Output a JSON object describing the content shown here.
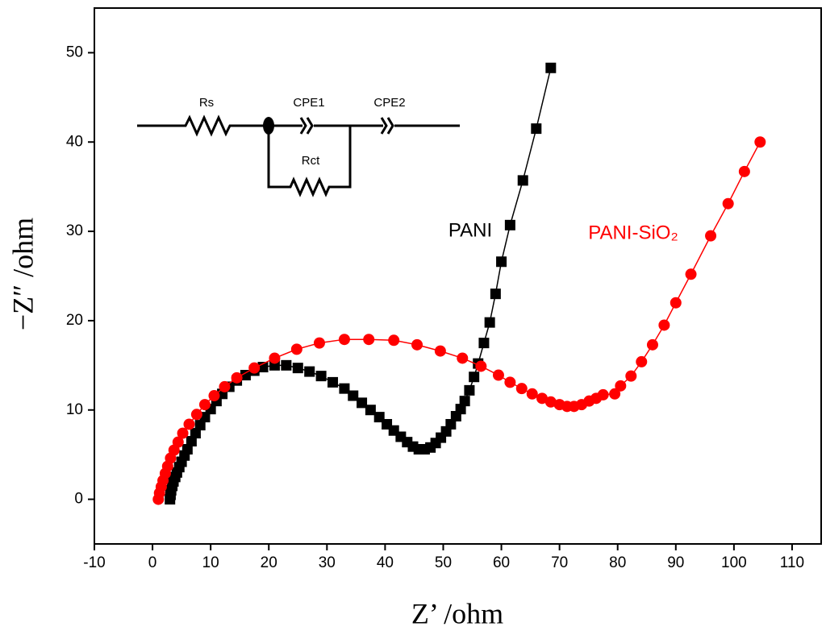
{
  "chart_data": {
    "type": "scatter",
    "xlabel": "Z’ /ohm",
    "ylabel": "−Z″ /ohm",
    "xlim": [
      -10,
      115
    ],
    "ylim": [
      -5,
      55
    ],
    "xticks": [
      -10,
      0,
      10,
      20,
      30,
      40,
      50,
      60,
      70,
      80,
      90,
      100,
      110
    ],
    "yticks": [
      0,
      10,
      20,
      30,
      40,
      50
    ],
    "circuit_labels": [
      "Rs",
      "CPE1",
      "CPE2",
      "Rct"
    ],
    "series": [
      {
        "name": "PANI",
        "color": "#000000",
        "marker": "square",
        "x": [
          3,
          3.1,
          3.2,
          3.4,
          3.6,
          3.9,
          4.2,
          4.6,
          5,
          5.5,
          6,
          6.7,
          7.4,
          8.2,
          9,
          10,
          11,
          12,
          13.2,
          14.5,
          16,
          17.5,
          19,
          21,
          23,
          25,
          27,
          29,
          31,
          33,
          34.5,
          36,
          37.5,
          39,
          40.3,
          41.5,
          42.7,
          43.8,
          44.8,
          45.8,
          46.8,
          47.8,
          48.7,
          49.6,
          50.5,
          51.3,
          52.2,
          53,
          53.7,
          54.5,
          55.3,
          56,
          57,
          58,
          59,
          60,
          61.5,
          63.7,
          66,
          68.5
        ],
        "values": [
          0,
          0.5,
          1,
          1.5,
          2,
          2.5,
          3,
          3.6,
          4.2,
          4.9,
          5.6,
          6.5,
          7.4,
          8.3,
          9.2,
          10.1,
          11,
          11.8,
          12.6,
          13.3,
          13.9,
          14.4,
          14.8,
          15,
          15,
          14.7,
          14.3,
          13.8,
          13.1,
          12.4,
          11.6,
          10.8,
          10,
          9.2,
          8.4,
          7.7,
          7,
          6.4,
          5.9,
          5.6,
          5.6,
          5.8,
          6.3,
          6.9,
          7.6,
          8.4,
          9.3,
          10.1,
          11,
          12.2,
          13.7,
          15.2,
          17.5,
          19.8,
          23,
          26.6,
          30.7,
          35.7,
          41.5,
          48.3
        ]
      },
      {
        "name": "PANI-SiO₂",
        "color": "#ff0000",
        "marker": "circle",
        "x": [
          1,
          1.2,
          1.5,
          1.8,
          2.2,
          2.6,
          3.1,
          3.7,
          4.4,
          5.2,
          6.3,
          7.6,
          9,
          10.6,
          12.4,
          14.5,
          17.5,
          21,
          24.8,
          28.7,
          33,
          37.2,
          41.5,
          45.5,
          49.5,
          53.3,
          56.5,
          59.5,
          61.5,
          63.5,
          65.3,
          67,
          68.5,
          70,
          71.3,
          72.5,
          73.8,
          75.1,
          76.3,
          77.5,
          79.5,
          80.5,
          82.3,
          84.1,
          86,
          88,
          90,
          92.6,
          96,
          99,
          101.8,
          104.5
        ],
        "values": [
          0,
          0.7,
          1.4,
          2.1,
          2.9,
          3.7,
          4.6,
          5.5,
          6.4,
          7.4,
          8.4,
          9.5,
          10.6,
          11.6,
          12.6,
          13.6,
          14.7,
          15.8,
          16.8,
          17.5,
          17.9,
          17.9,
          17.8,
          17.3,
          16.6,
          15.8,
          14.9,
          13.9,
          13.1,
          12.4,
          11.8,
          11.3,
          10.9,
          10.6,
          10.4,
          10.4,
          10.6,
          11,
          11.3,
          11.7,
          11.8,
          12.7,
          13.8,
          15.4,
          17.3,
          19.5,
          22,
          25.2,
          29.5,
          33.1,
          36.7,
          40
        ]
      }
    ]
  }
}
